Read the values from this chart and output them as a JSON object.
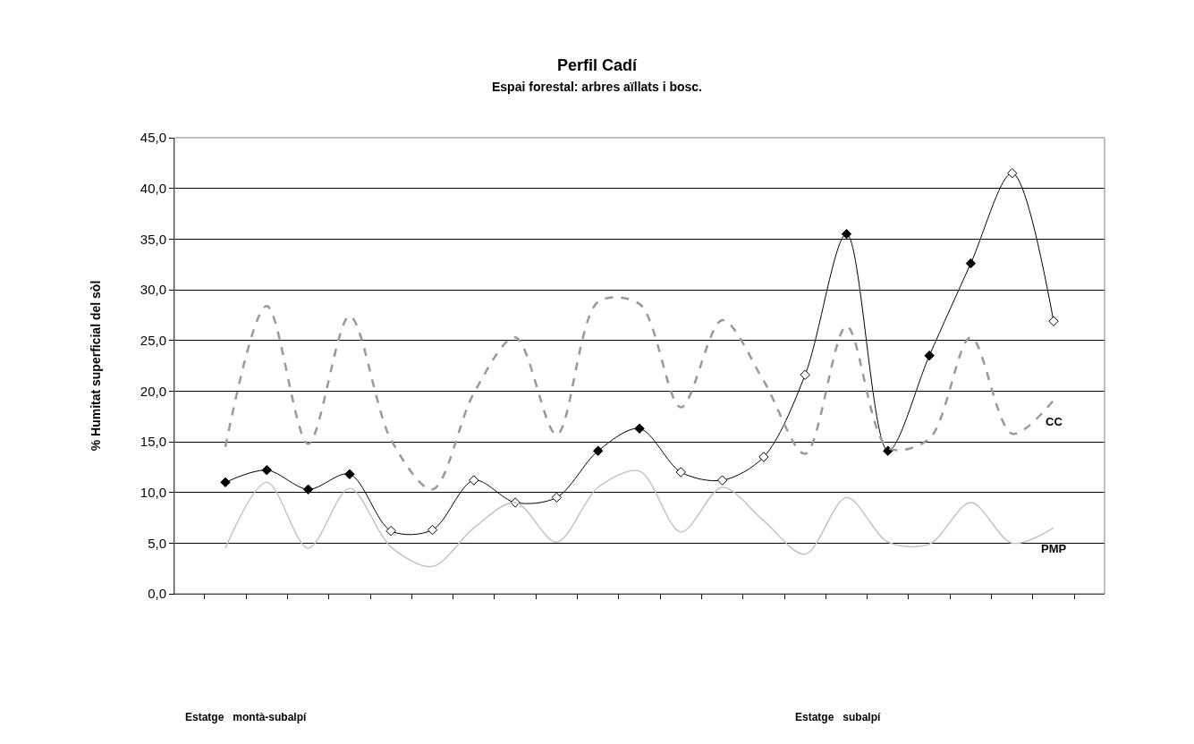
{
  "chart_data": {
    "type": "line",
    "title": "Perfil Cadí",
    "subtitle": "Espai forestal: arbres aïllats i bosc.",
    "ylabel": "% Humitat superficial del sòl",
    "categories": [
      null,
      null,
      null,
      null,
      null,
      null,
      null,
      null,
      null,
      null,
      null,
      null,
      null,
      null,
      null,
      null,
      null,
      null,
      null,
      null,
      null
    ],
    "series": [
      {
        "color": "#000000",
        "marker": "diamond",
        "line_style": "solid",
        "colors": [
          "#000000",
          "#000000",
          "#000000",
          "#000000",
          "#ffffff",
          "#ffffff",
          "#ffffff",
          "#ffffff",
          "#ffffff",
          "#000000",
          "#000000",
          "#ffffff",
          "#ffffff",
          "#ffffff",
          "#ffffff",
          "#000000",
          "#000000",
          "#000000",
          "#000000",
          "#ffffff",
          "#ffffff"
        ],
        "values": [
          11.0,
          12.2,
          10.3,
          11.8,
          6.2,
          6.3,
          11.2,
          9.0,
          9.5,
          14.1,
          16.3,
          12.0,
          11.2,
          13.5,
          21.6,
          35.5,
          14.1,
          23.5,
          32.6,
          41.5,
          26.9
        ]
      },
      {
        "name": "CC",
        "color": "#999999",
        "marker": "none",
        "line_style": "dashed",
        "values": [
          14.5,
          28.4,
          14.8,
          27.4,
          15.2,
          10.3,
          19.8,
          25.3,
          15.7,
          28.8,
          28.6,
          18.4,
          27.0,
          21.0,
          13.8,
          26.4,
          14.4,
          15.3,
          25.3,
          15.8,
          19.1
        ]
      },
      {
        "name": "PMP",
        "color": "#c0c0c0",
        "marker": "none",
        "line_style": "solid",
        "values": [
          4.5,
          11.0,
          4.5,
          10.4,
          4.6,
          2.7,
          6.5,
          9.0,
          5.1,
          10.5,
          12.1,
          6.1,
          10.5,
          7.2,
          3.9,
          9.5,
          5.1,
          4.9,
          9.0,
          5.0,
          6.5
        ]
      }
    ],
    "ylim": [
      0,
      45
    ],
    "yticks": [
      {
        "value": 0,
        "label": "0,0"
      },
      {
        "value": 5,
        "label": "5,0"
      },
      {
        "value": 10,
        "label": "10,0"
      },
      {
        "value": 15,
        "label": "15,0"
      },
      {
        "value": 20,
        "label": "20,0"
      },
      {
        "value": 25,
        "label": "25,0"
      },
      {
        "value": 30,
        "label": "30,0"
      },
      {
        "value": 35,
        "label": "35,0"
      },
      {
        "value": 40,
        "label": "40,0"
      },
      {
        "value": 45,
        "label": "45,0"
      }
    ],
    "grid": "y",
    "legend": false,
    "annotations": [
      "Estatge   montà-subalpí",
      "Estatge   subalpí"
    ]
  }
}
